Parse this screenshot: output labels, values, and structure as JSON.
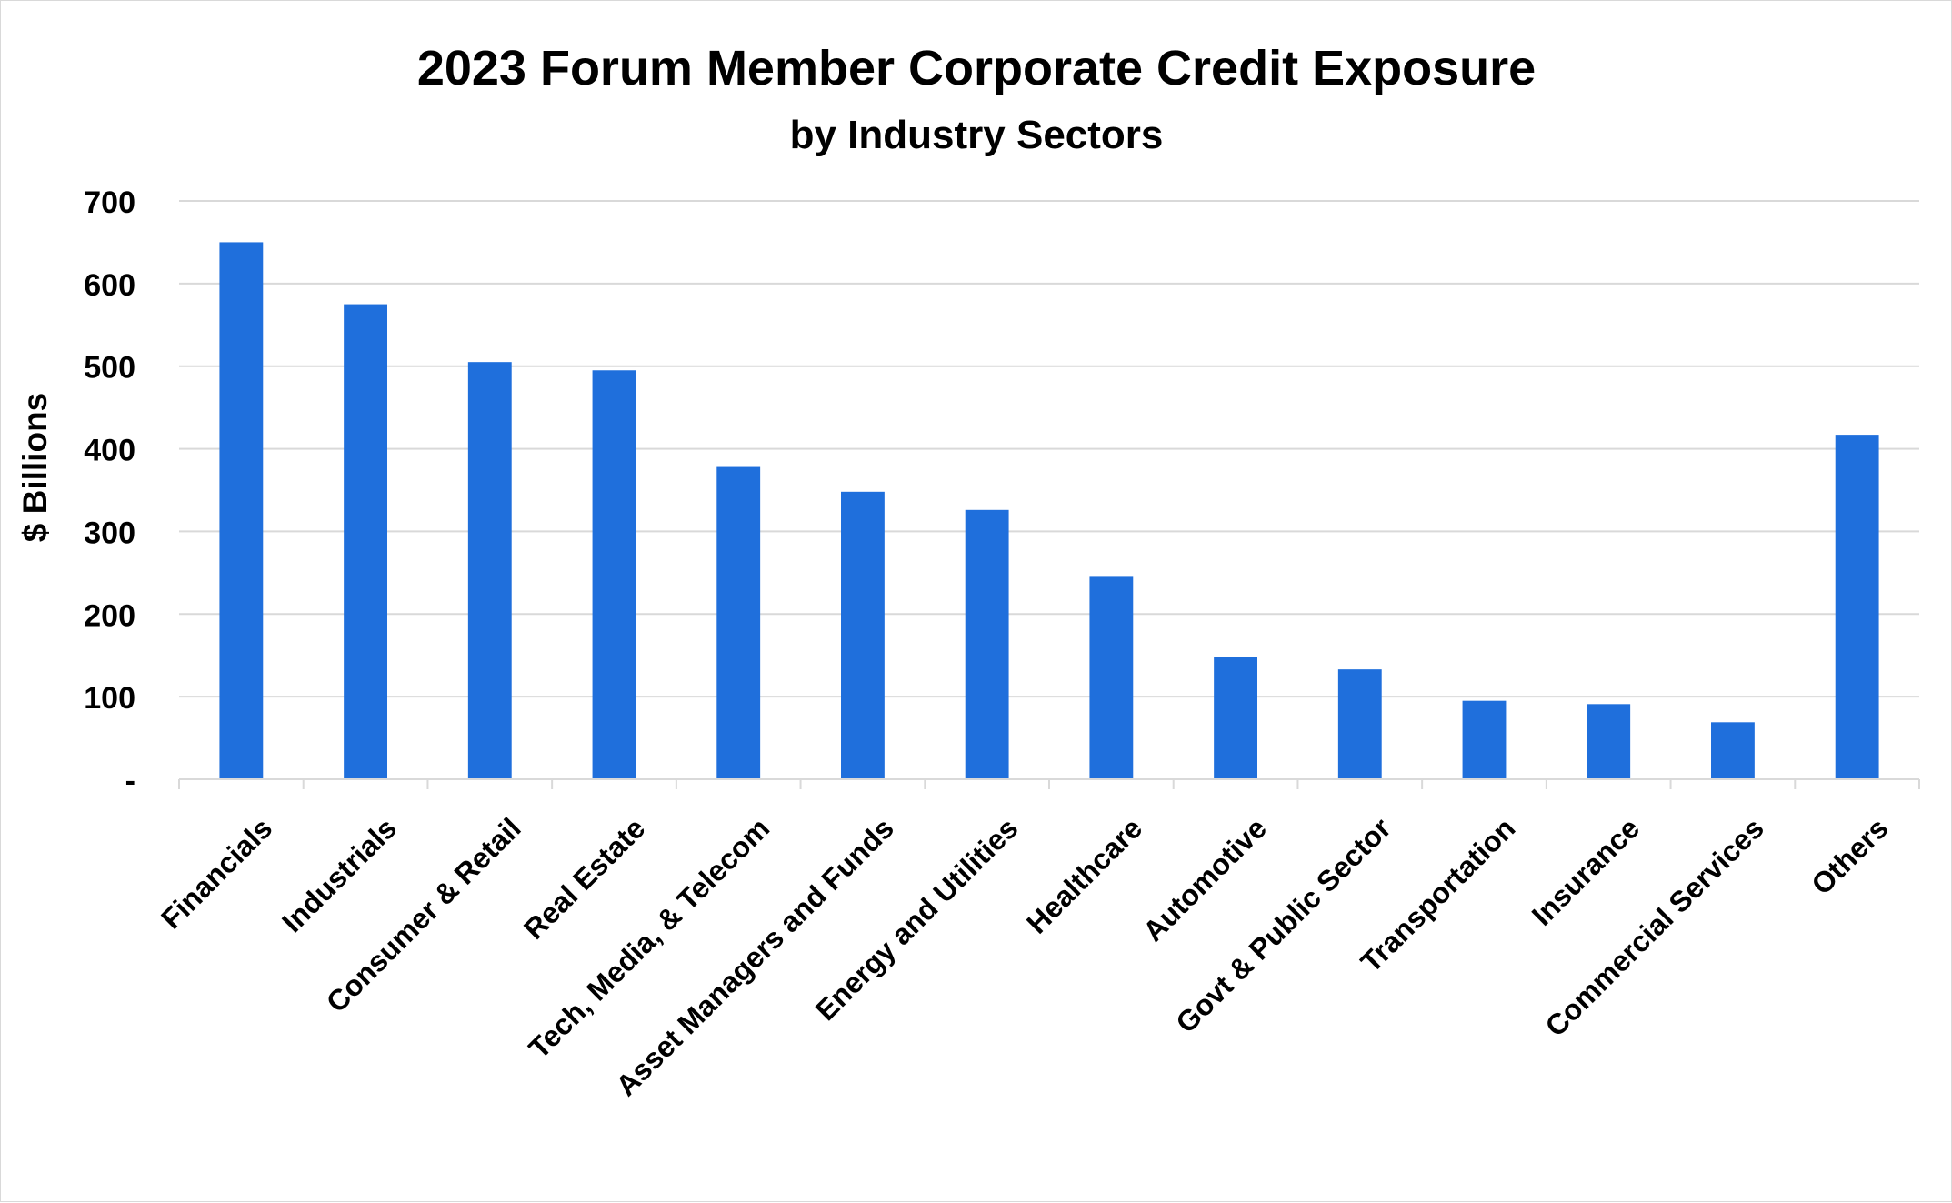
{
  "chart_data": {
    "type": "bar",
    "title": "2023 Forum Member Corporate Credit Exposure",
    "subtitle": "by Industry Sectors",
    "xlabel": "",
    "ylabel": "$ Billions",
    "ylim": [
      0,
      700
    ],
    "yticks": [
      0,
      100,
      200,
      300,
      400,
      500,
      600,
      700
    ],
    "ytick_labels": [
      "-",
      "100",
      "200",
      "300",
      "400",
      "500",
      "600",
      "700"
    ],
    "grid": true,
    "legend": "none",
    "bar_color": "#1f6fdc",
    "categories": [
      "Financials",
      "Industrials",
      "Consumer & Retail",
      "Real Estate",
      "Tech, Media, & Telecom",
      "Asset Managers and Funds",
      "Energy and Utilities",
      "Healthcare",
      "Automotive",
      "Govt & Public Sector",
      "Transportation",
      "Insurance",
      "Commercial Services",
      "Others"
    ],
    "values": [
      650,
      575,
      505,
      495,
      378,
      348,
      326,
      245,
      148,
      133,
      95,
      91,
      69,
      417
    ]
  }
}
